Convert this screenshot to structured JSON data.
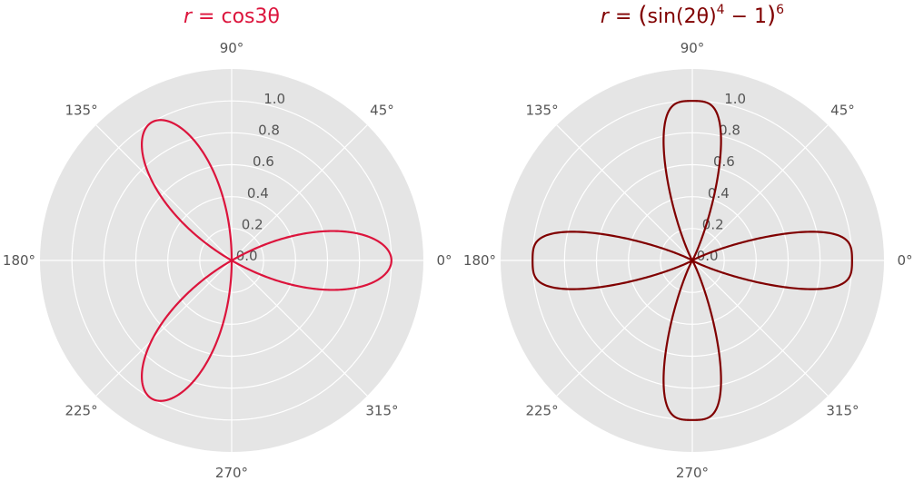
{
  "chart_data": [
    {
      "type": "line",
      "projection": "polar",
      "title_parts": {
        "lhs": "r",
        "eq": " = ",
        "rhs": "cos3θ"
      },
      "color": "#dc143c",
      "equation": "cos(3*theta)",
      "rlim": [
        0,
        1.0
      ],
      "radial_ticks": [
        "0.0",
        "0.2",
        "0.4",
        "0.6",
        "0.8",
        "1.0"
      ],
      "angle_ticks": [
        "0°",
        "45°",
        "90°",
        "135°",
        "180°",
        "225°",
        "270°",
        "315°"
      ],
      "grid": true
    },
    {
      "type": "line",
      "projection": "polar",
      "title_parts": {
        "lhs": "r",
        "eq": " = ",
        "open": "(",
        "inner": "sin(2θ)",
        "exp1": "4",
        "minus": " − 1",
        "close": ")",
        "exp2": "6"
      },
      "color": "#800000",
      "equation": "(sin(2*theta)^4 - 1)^6",
      "rlim": [
        0,
        1.0
      ],
      "radial_ticks": [
        "0.0",
        "0.2",
        "0.4",
        "0.6",
        "0.8",
        "1.0"
      ],
      "angle_ticks": [
        "0°",
        "45°",
        "90°",
        "135°",
        "180°",
        "225°",
        "270°",
        "315°"
      ],
      "grid": true
    }
  ]
}
